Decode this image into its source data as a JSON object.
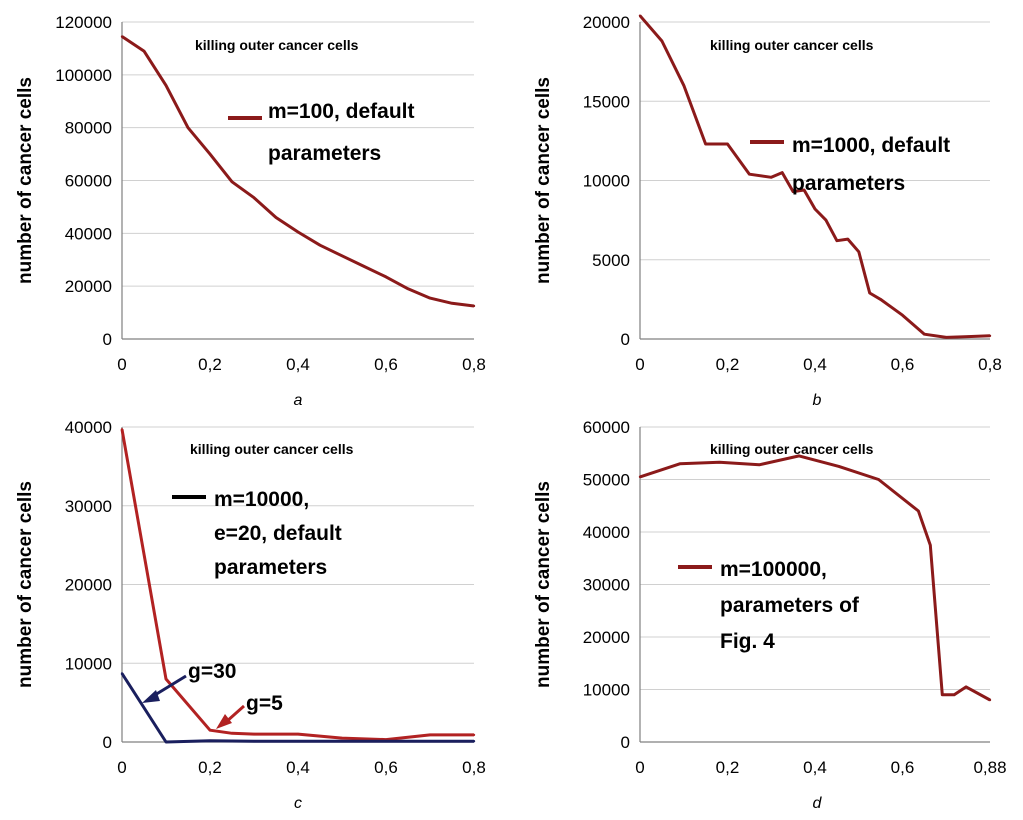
{
  "chart_data": [
    {
      "type": "line",
      "panel_label": "a",
      "title": "killing outer cancer cells",
      "xlabel": "",
      "ylabel": "number of cancer cells",
      "xlim": [
        0,
        0.8
      ],
      "ylim": [
        0,
        120000
      ],
      "xticks": [
        "0",
        "0,2",
        "0,4",
        "0,6",
        "0,8"
      ],
      "yticks": [
        "0",
        "20000",
        "40000",
        "60000",
        "80000",
        "100000",
        "120000"
      ],
      "grid": true,
      "legend_position": "top-right",
      "series": [
        {
          "name": "m=100, default parameters",
          "color": "#8b1a1a",
          "x": [
            0,
            0.05,
            0.1,
            0.15,
            0.2,
            0.25,
            0.3,
            0.35,
            0.4,
            0.45,
            0.5,
            0.55,
            0.6,
            0.65,
            0.7,
            0.75,
            0.8
          ],
          "y": [
            114500,
            109000,
            96000,
            80000,
            70000,
            59500,
            53500,
            46000,
            40500,
            35500,
            31500,
            27500,
            23500,
            19000,
            15500,
            13500,
            12500
          ]
        }
      ]
    },
    {
      "type": "line",
      "panel_label": "b",
      "title": "killing outer cancer cells",
      "xlabel": "",
      "ylabel": "number of cancer cells",
      "xlim": [
        0,
        0.8
      ],
      "ylim": [
        0,
        20000
      ],
      "xticks": [
        "0",
        "0,2",
        "0,4",
        "0,6",
        "0,8"
      ],
      "yticks": [
        "0",
        "5000",
        "10000",
        "15000",
        "20000"
      ],
      "grid": true,
      "legend_position": "right",
      "series": [
        {
          "name": "m=1000, default parameters",
          "color": "#8b1a1a",
          "x": [
            0,
            0.05,
            0.1,
            0.15,
            0.2,
            0.25,
            0.3,
            0.325,
            0.35,
            0.375,
            0.4,
            0.425,
            0.45,
            0.475,
            0.5,
            0.525,
            0.55,
            0.6,
            0.65,
            0.7,
            0.75,
            0.8
          ],
          "y": [
            20400,
            18800,
            16000,
            12300,
            12300,
            10400,
            10200,
            10500,
            9300,
            9400,
            8200,
            7500,
            6200,
            6300,
            5500,
            2900,
            2500,
            1500,
            300,
            100,
            150,
            200
          ]
        }
      ]
    },
    {
      "type": "line",
      "panel_label": "c",
      "title": "killing outer cancer cells",
      "xlabel": "",
      "ylabel": "number of cancer cells",
      "xlim": [
        0,
        0.8
      ],
      "ylim": [
        0,
        40000
      ],
      "xticks": [
        "0",
        "0,2",
        "0,4",
        "0,6",
        "0,8"
      ],
      "yticks": [
        "0",
        "10000",
        "20000",
        "30000",
        "40000"
      ],
      "grid": true,
      "legend_position": "top-right",
      "legend_text": "m=10000, e=20, default parameters",
      "series": [
        {
          "name": "g=5",
          "color": "#b22222",
          "x": [
            0,
            0.1,
            0.2,
            0.25,
            0.3,
            0.4,
            0.5,
            0.6,
            0.7,
            0.8
          ],
          "y": [
            39700,
            8000,
            1500,
            1100,
            1000,
            1000,
            500,
            300,
            900,
            900
          ]
        },
        {
          "name": "g=30",
          "color": "#1a1f5e",
          "x": [
            0,
            0.1,
            0.2,
            0.3,
            0.4,
            0.5,
            0.6,
            0.7,
            0.8
          ],
          "y": [
            8700,
            0,
            150,
            100,
            100,
            100,
            100,
            100,
            100
          ]
        }
      ],
      "annotations": [
        "g=30",
        "g=5"
      ]
    },
    {
      "type": "line",
      "panel_label": "d",
      "title": "killing outer cancer cells",
      "xlabel": "",
      "ylabel": "number of cancer cells",
      "xlim": [
        0,
        0.88
      ],
      "ylim": [
        0,
        60000
      ],
      "xticks": [
        "0",
        "0,2",
        "0,4",
        "0,6",
        "0,88"
      ],
      "yticks": [
        "0",
        "10000",
        "20000",
        "30000",
        "40000",
        "50000",
        "60000"
      ],
      "grid": true,
      "legend_position": "center",
      "series": [
        {
          "name": "m=100000, parameters of Fig. 4",
          "color": "#8b1a1a",
          "x": [
            0,
            0.1,
            0.2,
            0.3,
            0.4,
            0.5,
            0.6,
            0.7,
            0.73,
            0.76,
            0.79,
            0.82,
            0.88
          ],
          "y": [
            50500,
            53000,
            53300,
            52800,
            54500,
            52500,
            50000,
            44000,
            37500,
            9000,
            9000,
            10500,
            8000
          ]
        }
      ]
    }
  ]
}
